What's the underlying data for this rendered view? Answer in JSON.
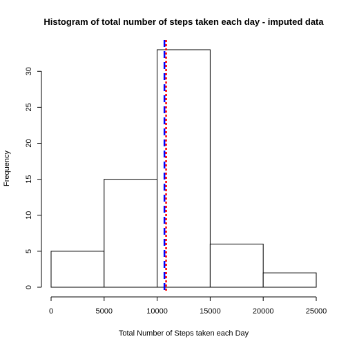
{
  "chart_data": {
    "type": "bar",
    "title": "Histogram of total number of steps taken each day - imputed data",
    "xlabel": "Total Number of Steps taken each Day",
    "ylabel": "Frequency",
    "bins": [
      {
        "start": 0,
        "end": 5000,
        "count": 5
      },
      {
        "start": 5000,
        "end": 10000,
        "count": 15
      },
      {
        "start": 10000,
        "end": 15000,
        "count": 33
      },
      {
        "start": 15000,
        "end": 20000,
        "count": 6
      },
      {
        "start": 20000,
        "end": 25000,
        "count": 2
      }
    ],
    "x_ticks": [
      "0",
      "5000",
      "10000",
      "15000",
      "20000",
      "25000"
    ],
    "y_ticks": [
      "0",
      "5",
      "10",
      "15",
      "20",
      "25",
      "30"
    ],
    "xlim": [
      0,
      25000
    ],
    "ylim": [
      0,
      33
    ],
    "reference_lines": [
      {
        "value": 10766,
        "color": "#0000ff",
        "style": "dashed"
      },
      {
        "value": 10766,
        "color": "#ff0000",
        "style": "dotted"
      }
    ],
    "bar_fill": "#ffffff",
    "bar_stroke": "#000000",
    "grid": false
  }
}
